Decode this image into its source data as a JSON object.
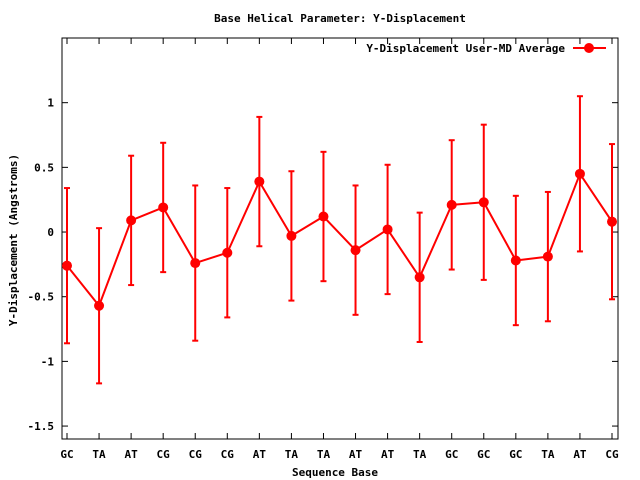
{
  "chart_data": {
    "type": "line",
    "title": "Base  Helical Parameter: Y-Displacement",
    "xlabel": "Sequence Base",
    "ylabel": "Y-Displacement (Angstroms)",
    "ylim": [
      -1.6,
      1.5
    ],
    "yticks": [
      1,
      0.5,
      0,
      -0.5,
      -1,
      -1.5
    ],
    "ytick_labels": [
      "1",
      "0.5",
      "0",
      "-0.5",
      "-1",
      "-1.5"
    ],
    "grid": false,
    "legend_position": "top-right",
    "categories": [
      "GC",
      "TA",
      "AT",
      "CG",
      "CG",
      "CG",
      "AT",
      "TA",
      "TA",
      "AT",
      "AT",
      "TA",
      "GC",
      "GC",
      "GC",
      "TA",
      "AT",
      "CG"
    ],
    "series": [
      {
        "name": "Y-Displacement User-MD Average",
        "color": "#ff0000",
        "values": [
          -0.26,
          -0.57,
          0.09,
          0.19,
          -0.24,
          -0.16,
          0.39,
          -0.03,
          0.12,
          -0.14,
          0.02,
          -0.35,
          0.21,
          0.23,
          -0.22,
          -0.19,
          0.45,
          0.08
        ],
        "error": [
          0.6,
          0.6,
          0.5,
          0.5,
          0.6,
          0.5,
          0.5,
          0.5,
          0.5,
          0.5,
          0.5,
          0.5,
          0.5,
          0.6,
          0.5,
          0.5,
          0.6,
          0.6
        ]
      }
    ]
  }
}
